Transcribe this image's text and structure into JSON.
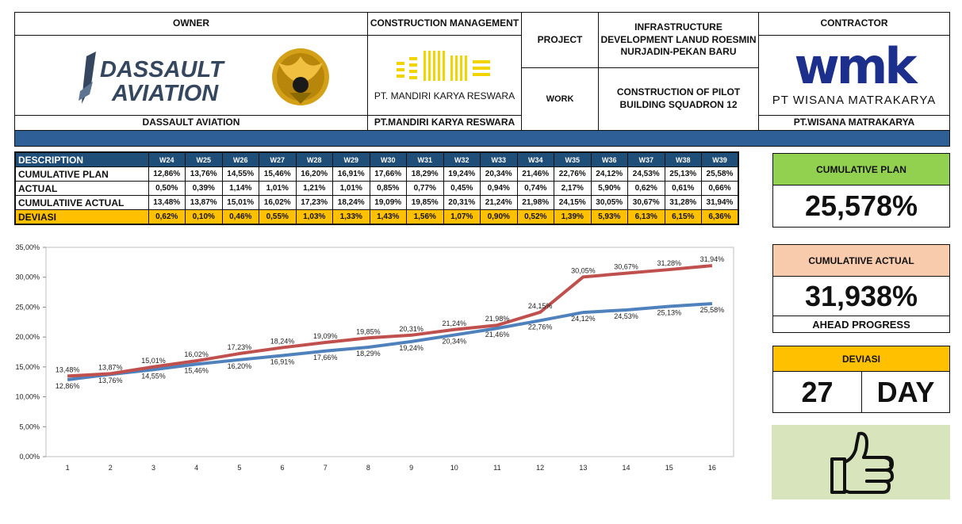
{
  "header": {
    "owner_label": "OWNER",
    "owner_logo_text_1": "DASSAULT",
    "owner_logo_text_2": "AVIATION",
    "owner_name": "DASSAULT AVIATION",
    "cm_label": "CONSTRUCTION MANAGEMENT",
    "cm_logo_caption": "PT. MANDIRI KARYA RESWARA",
    "cm_name": "PT.MANDIRI KARYA RESWARA",
    "project_label": "PROJECT",
    "project_value": "INFRASTRUCTURE DEVELOPMENT LANUD ROESMIN NURJADIN-PEKAN BARU",
    "work_label": "WORK",
    "work_value": "CONSTRUCTION OF PILOT BUILDING SQUADRON 12",
    "contractor_label": "CONTRACTOR",
    "contractor_logo_text": "wmk",
    "contractor_logo_caption": "PT WISANA MATRAKARYA",
    "contractor_name": "PT.WISANA MATRAKARYA",
    "colors": {
      "band": "#2e5f96",
      "wmk_blue": "#1c2f8c",
      "cm_yellow": "#f2d400",
      "dassault_navy": "#34475f"
    }
  },
  "progress_table": {
    "desc_label": "DESCRIPTION",
    "weeks": [
      "W24",
      "W25",
      "W26",
      "W27",
      "W28",
      "W29",
      "W30",
      "W31",
      "W32",
      "W33",
      "W34",
      "W35",
      "W36",
      "W37",
      "W38",
      "W39"
    ],
    "rows": [
      {
        "label": "CUMULATIVE PLAN",
        "values": [
          "12,86%",
          "13,76%",
          "14,55%",
          "15,46%",
          "16,20%",
          "16,91%",
          "17,66%",
          "18,29%",
          "19,24%",
          "20,34%",
          "21,46%",
          "22,76%",
          "24,12%",
          "24,53%",
          "25,13%",
          "25,58%"
        ]
      },
      {
        "label": "ACTUAL",
        "values": [
          "0,50%",
          "0,39%",
          "1,14%",
          "1,01%",
          "1,21%",
          "1,01%",
          "0,85%",
          "0,77%",
          "0,45%",
          "0,94%",
          "0,74%",
          "2,17%",
          "5,90%",
          "0,62%",
          "0,61%",
          "0,66%"
        ]
      },
      {
        "label": "CUMULATIIVE ACTUAL",
        "values": [
          "13,48%",
          "13,87%",
          "15,01%",
          "16,02%",
          "17,23%",
          "18,24%",
          "19,09%",
          "19,85%",
          "20,31%",
          "21,24%",
          "21,98%",
          "24,15%",
          "30,05%",
          "30,67%",
          "31,28%",
          "31,94%"
        ]
      },
      {
        "label": "DEVIASI",
        "values": [
          "0,62%",
          "0,10%",
          "0,46%",
          "0,55%",
          "1,03%",
          "1,33%",
          "1,43%",
          "1,56%",
          "1,07%",
          "0,90%",
          "0,52%",
          "1,39%",
          "5,93%",
          "6,13%",
          "6,15%",
          "6,36%"
        ]
      }
    ],
    "colors": {
      "header_bg": "#1f4e79",
      "deviasi_bg": "#ffc000"
    }
  },
  "cards": {
    "plan_title": "CUMULATIVE PLAN",
    "plan_value": "25,578%",
    "actual_title": "CUMULATIIVE ACTUAL",
    "actual_value": "31,938%",
    "actual_status": "AHEAD PROGRESS",
    "deviasi_title": "DEVIASI",
    "deviasi_value": "27",
    "deviasi_unit": "DAY",
    "thumb_icon": "thumbs-up-icon",
    "colors": {
      "plan": "#92d050",
      "actual": "#f8cbad",
      "deviasi": "#ffc000",
      "thumb_bg": "#d8e4bc"
    }
  },
  "chart_data": {
    "type": "line",
    "x": [
      1,
      2,
      3,
      4,
      5,
      6,
      7,
      8,
      9,
      10,
      11,
      12,
      13,
      14,
      15,
      16
    ],
    "ylim": [
      0,
      35
    ],
    "yticks": [
      "0,00%",
      "5,00%",
      "10,00%",
      "15,00%",
      "20,00%",
      "25,00%",
      "30,00%",
      "35,00%"
    ],
    "grid": false,
    "legend": "none",
    "series": [
      {
        "values": [
          12.86,
          13.76,
          14.55,
          15.46,
          16.2,
          16.91,
          17.66,
          18.29,
          19.24,
          20.34,
          21.46,
          22.76,
          24.12,
          24.53,
          25.13,
          25.58
        ],
        "labels": [
          "12,86%",
          "13,76%",
          "14,55%",
          "15,46%",
          "16,20%",
          "16,91%",
          "17,66%",
          "18,29%",
          "19,24%",
          "20,34%",
          "21,46%",
          "22,76%",
          "24,12%",
          "24,53%",
          "25,13%",
          "25,58%"
        ],
        "color": "#4f81bd"
      },
      {
        "values": [
          13.48,
          13.87,
          15.01,
          16.02,
          17.23,
          18.24,
          19.09,
          19.85,
          20.31,
          21.24,
          21.98,
          24.15,
          30.05,
          30.67,
          31.28,
          31.94
        ],
        "labels": [
          "13,48%",
          "13,87%",
          "15,01%",
          "16,02%",
          "17,23%",
          "18,24%",
          "19,09%",
          "19,85%",
          "20,31%",
          "21,24%",
          "21,98%",
          "24,15%",
          "30,05%",
          "30,67%",
          "31,28%",
          "31,94%"
        ],
        "color": "#c0504d"
      }
    ]
  }
}
